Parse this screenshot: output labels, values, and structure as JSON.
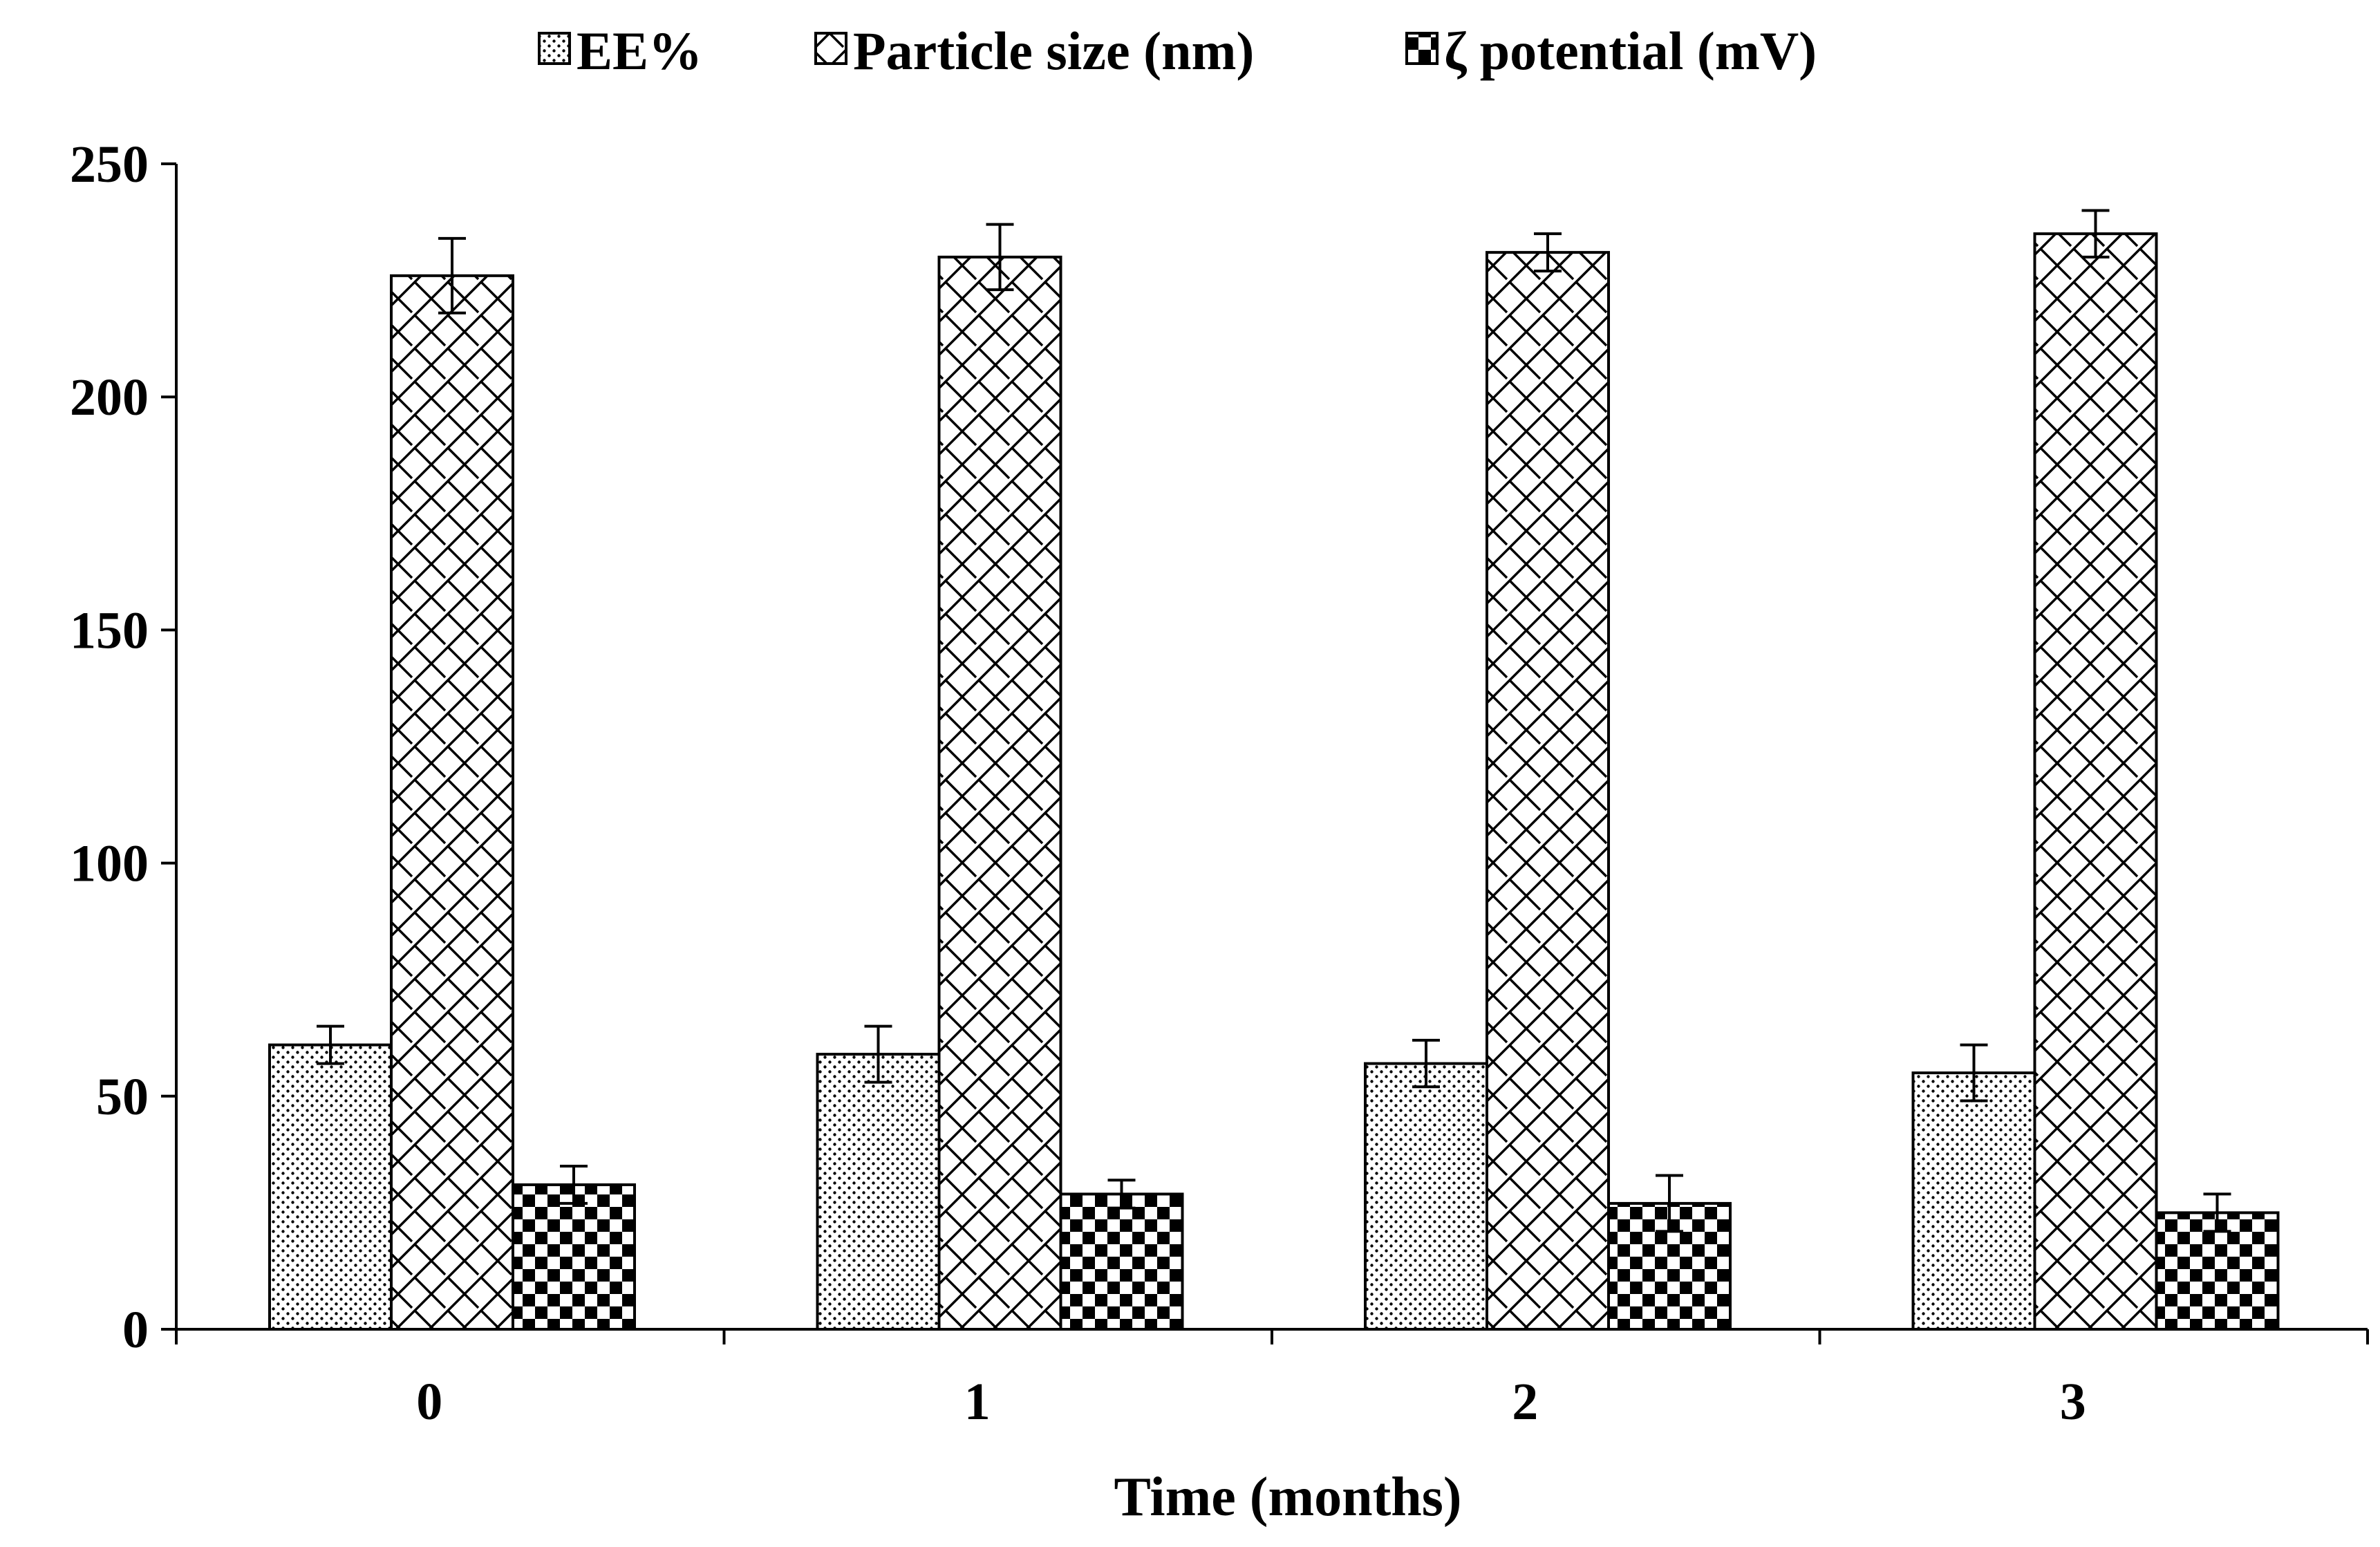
{
  "chart_data": {
    "type": "bar",
    "title": "",
    "xlabel": "Time (months)",
    "ylabel": "",
    "categories": [
      "0",
      "1",
      "2",
      "3"
    ],
    "ylim": [
      0,
      250
    ],
    "yticks": [
      "0",
      "50",
      "100",
      "150",
      "200",
      "250"
    ],
    "grid": false,
    "legend_position": "top",
    "series": [
      {
        "name": "EE%",
        "pattern": "dots",
        "values": [
          61,
          59,
          57,
          55
        ],
        "errors": [
          4,
          6,
          5,
          6
        ]
      },
      {
        "name": "Particle size (nm)",
        "pattern": "diagonal-brick",
        "values": [
          226,
          230,
          231,
          235
        ],
        "errors": [
          8,
          7,
          4,
          5
        ]
      },
      {
        "name": "ζ potential (mV)",
        "pattern": "checker",
        "values": [
          31,
          29,
          27,
          25
        ],
        "errors": [
          4,
          3,
          6,
          4
        ]
      }
    ]
  },
  "colors": {
    "ink": "#000000",
    "background": "#ffffff"
  }
}
